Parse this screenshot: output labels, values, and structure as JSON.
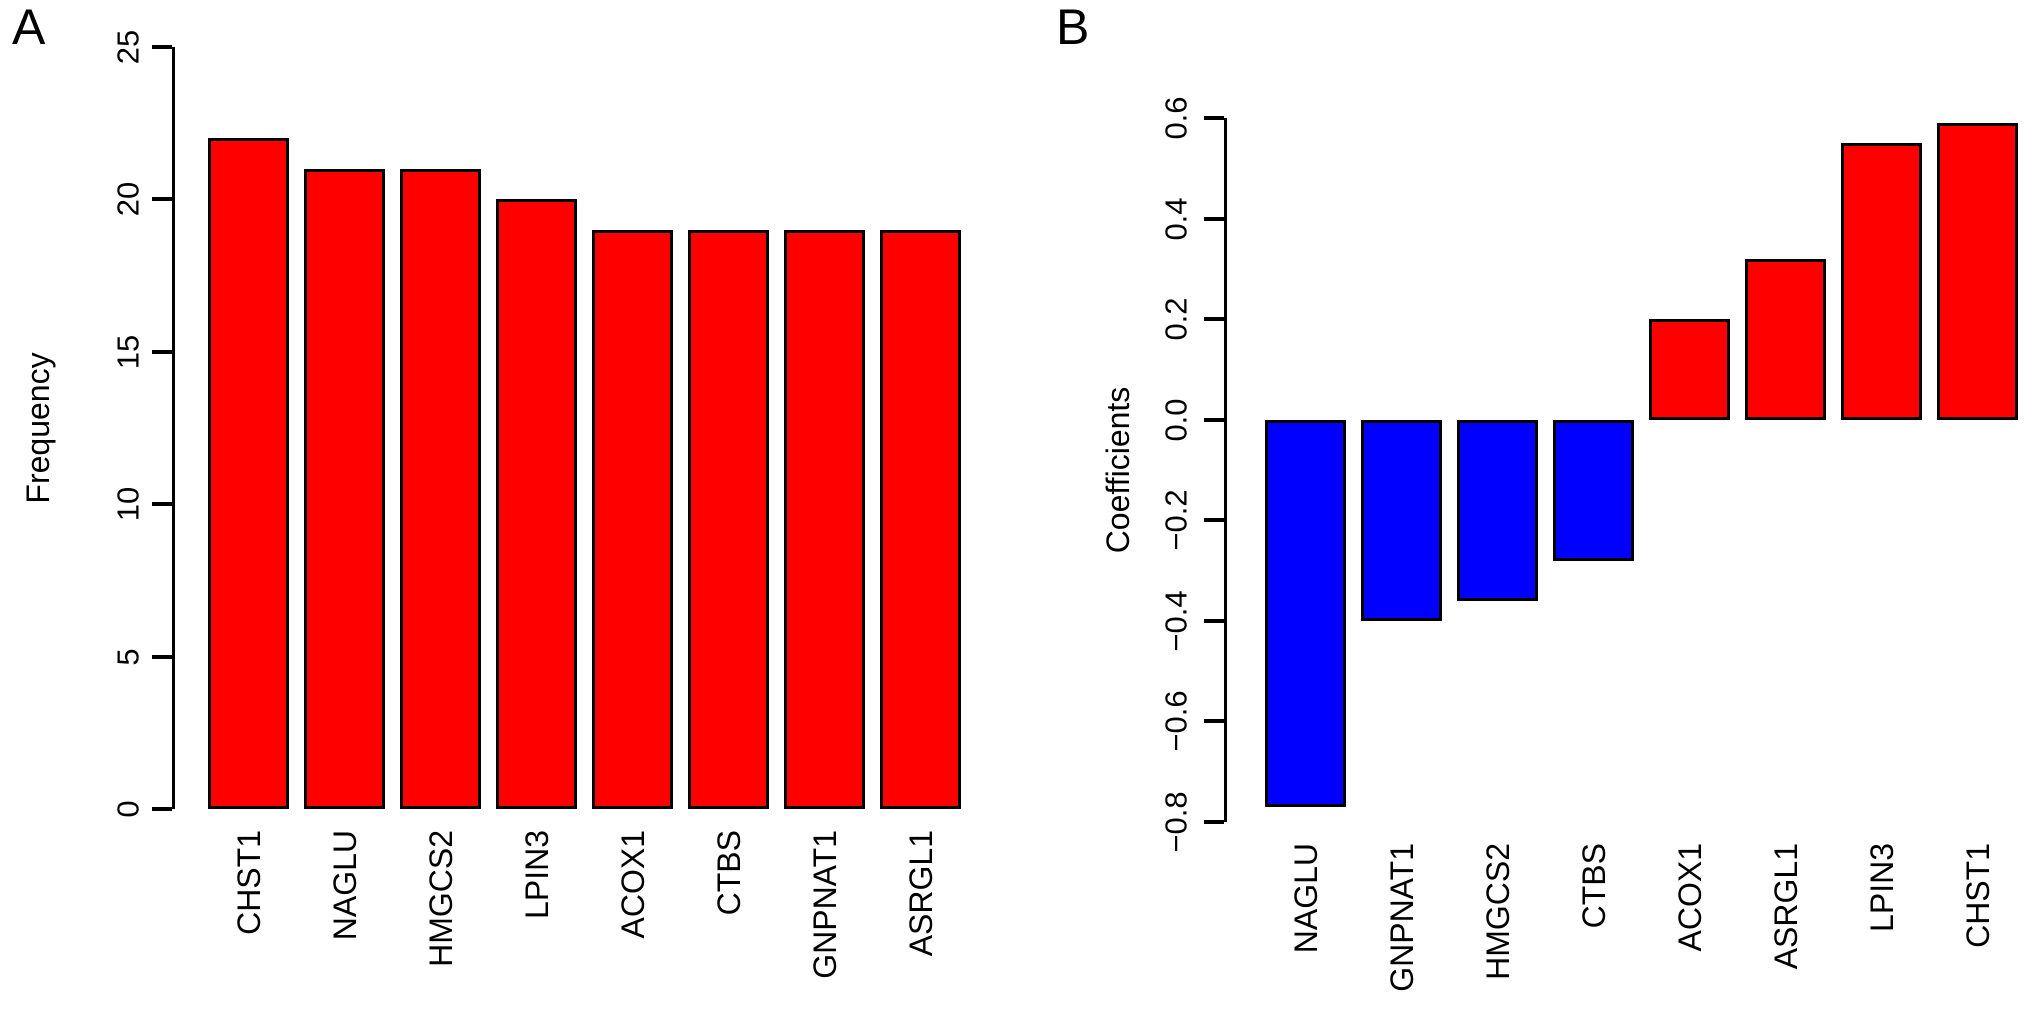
{
  "figure": {
    "background": "#ffffff",
    "text_color": "#000000",
    "axis_color": "#000000"
  },
  "chart_data": [
    {
      "type": "bar",
      "panel_label": "A",
      "ylabel": "Frequency",
      "xlabel": "",
      "categories": [
        "CHST1",
        "NAGLU",
        "HMGCS2",
        "LPIN3",
        "ACOX1",
        "CTBS",
        "GNPNAT1",
        "ASRGL1"
      ],
      "values": [
        22,
        21,
        21,
        20,
        19,
        19,
        19,
        19
      ],
      "bar_color": "#ff0000",
      "bar_border_color": "#000000",
      "ylim": [
        0,
        25
      ],
      "ytick_values": [
        25,
        20,
        15,
        10,
        5,
        0
      ],
      "ytick_labels": [
        "25",
        "20",
        "15",
        "10",
        "5",
        "0"
      ],
      "grid": false,
      "legend": "none",
      "category_label_rotation": "vertical-bottom-to-top"
    },
    {
      "type": "bar",
      "panel_label": "B",
      "ylabel": "Coefficients",
      "xlabel": "",
      "categories": [
        "NAGLU",
        "GNPNAT1",
        "HMGCS2",
        "CTBS",
        "ACOX1",
        "ASRGL1",
        "LPIN3",
        "CHST1"
      ],
      "values": [
        -0.77,
        -0.4,
        -0.36,
        -0.28,
        0.2,
        0.32,
        0.55,
        0.59
      ],
      "positive_color": "#ff0000",
      "negative_color": "#0000ff",
      "bar_border_color": "#000000",
      "ylim": [
        -0.8,
        0.6
      ],
      "ytick_values": [
        0.6,
        0.4,
        0.2,
        0.0,
        -0.2,
        -0.4,
        -0.6,
        -0.8
      ],
      "ytick_labels": [
        "0.6",
        "0.4",
        "0.2",
        "0.0",
        "−0.2",
        "−0.4",
        "−0.6",
        "−0.8"
      ],
      "grid": false,
      "legend": "none",
      "category_label_rotation": "vertical-bottom-to-top"
    }
  ]
}
